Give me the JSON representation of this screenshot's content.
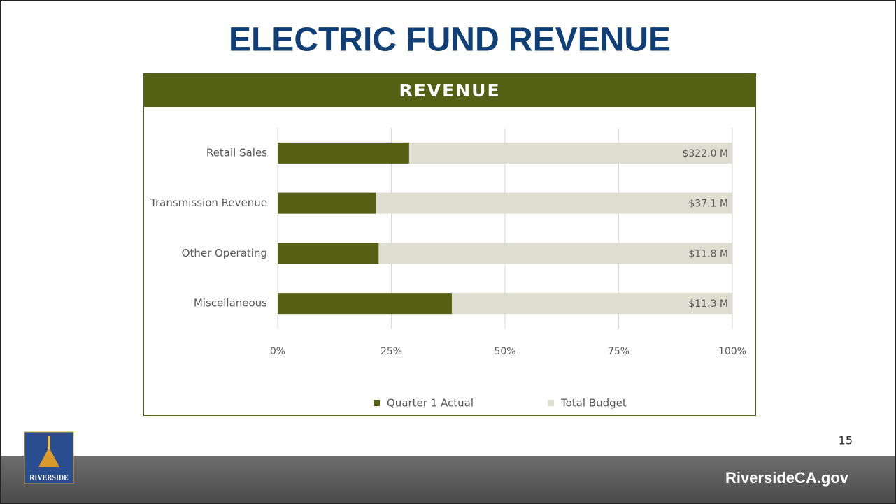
{
  "title": "ELECTRIC FUND REVENUE",
  "page_number": 15,
  "footer": "RiversideCA.gov",
  "logo_text": "RIVERSIDE",
  "chart_data": {
    "type": "bar",
    "orientation": "horizontal",
    "title": "REVENUE",
    "categories": [
      "Retail Sales",
      "Transmission Revenue",
      "Other Operating",
      "Miscellaneous"
    ],
    "series": [
      {
        "name": "Quarter 1 Actual",
        "color": "#556015",
        "values": [
          28.9,
          21.6,
          22.2,
          38.3
        ]
      },
      {
        "name": "Total Budget",
        "color": "#ddddd0",
        "values": [
          100,
          100,
          100,
          100
        ]
      }
    ],
    "annotations": [
      "$322.0 M",
      "$37.1 M",
      "$11.8 M",
      "$11.3 M"
    ],
    "xlim": [
      0,
      100
    ],
    "xticks": [
      {
        "value": 0,
        "label": "0%"
      },
      {
        "value": 25,
        "label": "25%"
      },
      {
        "value": 50,
        "label": "50%"
      },
      {
        "value": 75,
        "label": "75%"
      },
      {
        "value": 100,
        "label": "100%"
      }
    ],
    "grid": true,
    "legend": "bottom"
  }
}
